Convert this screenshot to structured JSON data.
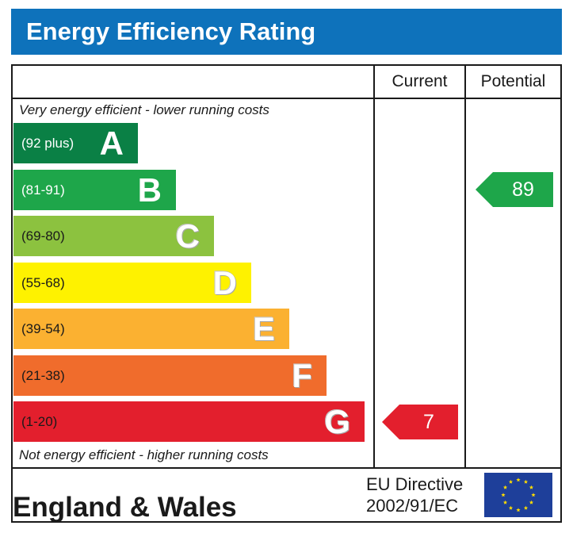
{
  "title": "Energy Efficiency Rating",
  "columns": {
    "current": "Current",
    "potential": "Potential"
  },
  "notes": {
    "top": "Very energy efficient - lower running costs",
    "bottom": "Not energy efficient - higher running costs"
  },
  "footer": {
    "region": "England & Wales",
    "directive_line1": "EU Directive",
    "directive_line2": "2002/91/EC"
  },
  "colors": {
    "header": "#0e72bb",
    "A": "#0a8045",
    "B": "#1ea64a",
    "C": "#8cc23f",
    "D": "#fef200",
    "E": "#fbb131",
    "F": "#f06c2c",
    "G": "#e31f2d",
    "eu_flag": "#1e3f9a",
    "eu_stars": "#ffdd00"
  },
  "chart_data": {
    "type": "bar",
    "title": "Energy Efficiency Rating",
    "categories": [
      "A",
      "B",
      "C",
      "D",
      "E",
      "F",
      "G"
    ],
    "bands": [
      {
        "letter": "A",
        "range": "(92 plus)",
        "color": "#0a8045",
        "range_text_color": "#ffffff"
      },
      {
        "letter": "B",
        "range": "(81-91)",
        "color": "#1ea64a",
        "range_text_color": "#ffffff"
      },
      {
        "letter": "C",
        "range": "(69-80)",
        "color": "#8cc23f",
        "range_text_color": "#1a1a1a"
      },
      {
        "letter": "D",
        "range": "(55-68)",
        "color": "#fef200",
        "range_text_color": "#1a1a1a"
      },
      {
        "letter": "E",
        "range": "(39-54)",
        "color": "#fbb131",
        "range_text_color": "#1a1a1a"
      },
      {
        "letter": "F",
        "range": "(21-38)",
        "color": "#f06c2c",
        "range_text_color": "#1a1a1a"
      },
      {
        "letter": "G",
        "range": "(1-20)",
        "color": "#e31f2d",
        "range_text_color": "#1a1a1a"
      }
    ],
    "ratings": {
      "current": {
        "value": 7,
        "band": "G",
        "color": "#e31f2d"
      },
      "potential": {
        "value": 89,
        "band": "B",
        "color": "#1ea64a"
      }
    }
  }
}
